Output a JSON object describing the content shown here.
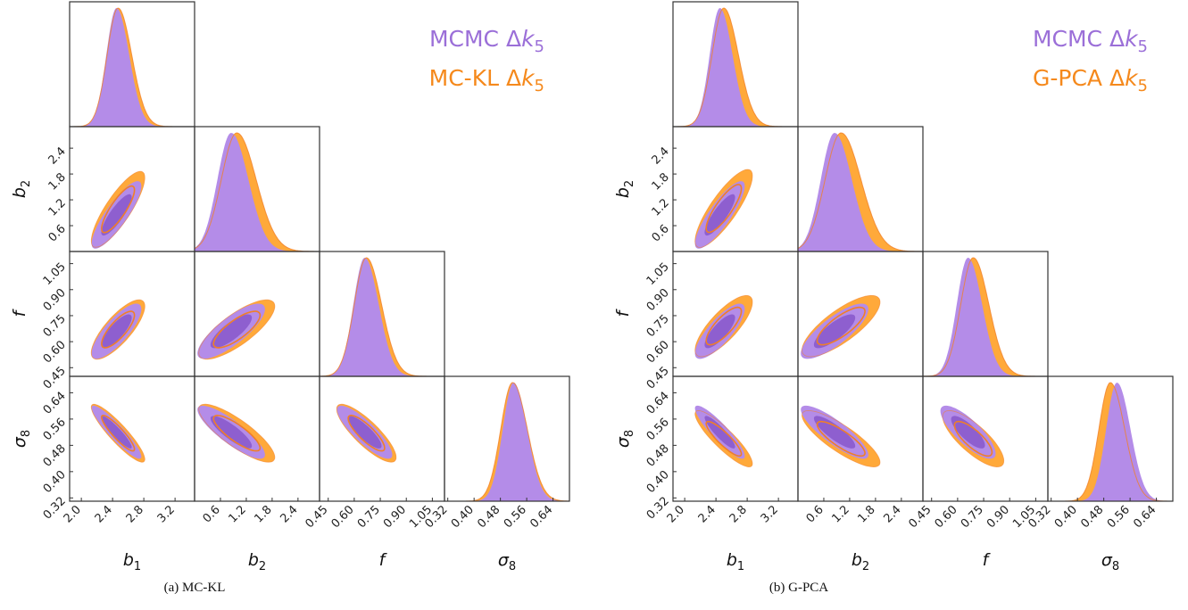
{
  "colors": {
    "mcmc": "#b48ce8",
    "mcmc_dark": "#8e5fcf",
    "alt": "#ffa93a",
    "alt_line": "#f07f28",
    "frame": "#333333"
  },
  "chart_data": [
    {
      "type": "scatter",
      "caption": "(a) MC-KL",
      "legend": [
        "MCMC Δk5",
        "MC-KL Δk5"
      ],
      "legend_placement": "top-right",
      "parameters": [
        "b1",
        "b2",
        "f",
        "σ8"
      ],
      "axis_labels": [
        "b",
        "b",
        "f",
        "σ"
      ],
      "axis_subscripts": [
        "1",
        "2",
        "",
        "8"
      ],
      "ranges": [
        [
          1.85,
          3.45
        ],
        [
          0.0,
          2.9
        ],
        [
          0.4,
          1.12
        ],
        [
          0.31,
          0.69
        ]
      ],
      "ticks": [
        [
          2.0,
          2.4,
          2.8,
          3.2
        ],
        [
          0.6,
          1.2,
          1.8,
          2.4
        ],
        [
          0.45,
          0.6,
          0.75,
          0.9,
          1.05
        ],
        [
          0.32,
          0.4,
          0.48,
          0.56,
          0.64
        ]
      ],
      "tick_labels": [
        [
          "2.0",
          "2.4",
          "2.8",
          "3.2"
        ],
        [
          "0.6",
          "1.2",
          "1.8",
          "2.4"
        ],
        [
          "0.45",
          "0.60",
          "0.75",
          "0.90",
          "1.05"
        ],
        [
          "0.32",
          "0.40",
          "0.48",
          "0.56",
          "0.64"
        ]
      ],
      "series": [
        {
          "name": "MCMC Δk5",
          "mean": [
            2.45,
            0.85,
            0.66,
            0.52
          ],
          "sigma": [
            0.13,
            0.32,
            0.065,
            0.033
          ]
        },
        {
          "name": "MC-KL Δk5",
          "mean": [
            2.47,
            0.98,
            0.67,
            0.517
          ],
          "sigma": [
            0.14,
            0.36,
            0.07,
            0.036
          ]
        }
      ],
      "correlation": [
        [
          1,
          0.85,
          0.8,
          -0.92
        ],
        [
          0.85,
          1,
          0.8,
          -0.85
        ],
        [
          0.8,
          0.8,
          1,
          -0.85
        ],
        [
          -0.92,
          -0.85,
          -0.85,
          1
        ]
      ]
    },
    {
      "type": "scatter",
      "caption": "(b) G-PCA",
      "legend": [
        "MCMC Δk5",
        "G-PCA Δk5"
      ],
      "legend_placement": "top-right",
      "parameters": [
        "b1",
        "b2",
        "f",
        "σ8"
      ],
      "axis_labels": [
        "b",
        "b",
        "f",
        "σ"
      ],
      "axis_subscripts": [
        "1",
        "2",
        "",
        "8"
      ],
      "ranges": [
        [
          1.85,
          3.45
        ],
        [
          0.0,
          2.9
        ],
        [
          0.4,
          1.12
        ],
        [
          0.31,
          0.69
        ]
      ],
      "ticks": [
        [
          2.0,
          2.4,
          2.8,
          3.2
        ],
        [
          0.6,
          1.2,
          1.8,
          2.4
        ],
        [
          0.45,
          0.6,
          0.75,
          0.9,
          1.05
        ],
        [
          0.32,
          0.4,
          0.48,
          0.56,
          0.64
        ]
      ],
      "tick_labels": [
        [
          "2.0",
          "2.4",
          "2.8",
          "3.2"
        ],
        [
          "0.6",
          "1.2",
          "1.8",
          "2.4"
        ],
        [
          "0.45",
          "0.60",
          "0.75",
          "0.90",
          "1.05"
        ],
        [
          "0.32",
          "0.40",
          "0.48",
          "0.56",
          "0.64"
        ]
      ],
      "series": [
        {
          "name": "MCMC Δk5",
          "mean": [
            2.45,
            0.85,
            0.66,
            0.52
          ],
          "sigma": [
            0.13,
            0.32,
            0.065,
            0.033
          ]
        },
        {
          "name": "G-PCA Δk5",
          "mean": [
            2.5,
            1.0,
            0.69,
            0.5
          ],
          "sigma": [
            0.15,
            0.37,
            0.072,
            0.035
          ]
        }
      ],
      "correlation": [
        [
          1,
          0.85,
          0.8,
          -0.9
        ],
        [
          0.85,
          1,
          0.8,
          -0.85
        ],
        [
          0.8,
          0.8,
          1,
          -0.8
        ],
        [
          -0.9,
          -0.85,
          -0.8,
          1
        ]
      ]
    }
  ]
}
